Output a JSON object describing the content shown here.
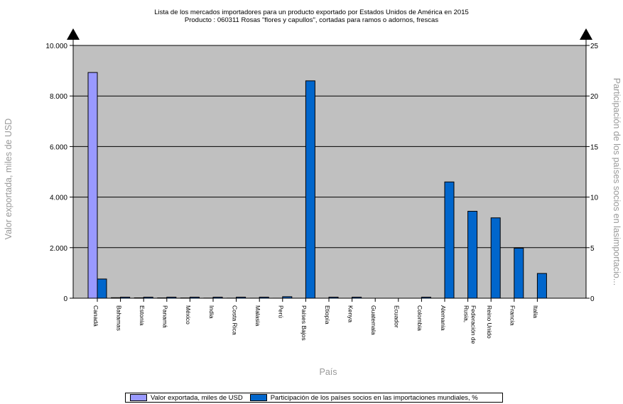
{
  "chart_data": {
    "type": "bar",
    "title": "Lista de los mercados importadores para un producto exportado por Estados Unidos de América en 2015",
    "subtitle": "Producto : 060311 Rosas \"flores y capullos\", cortadas para ramos o adornos, frescas",
    "xlabel": "País",
    "ylabel": "Valor exportada, miles de USD",
    "y2label": "Participación de los países socios en lasimportacio...",
    "ylim": [
      0,
      10000
    ],
    "y2lim": [
      0,
      25
    ],
    "yticks": [
      "0",
      "2.000",
      "4.000",
      "6.000",
      "8.000",
      "10.000"
    ],
    "y2ticks": [
      "0",
      "5",
      "10",
      "15",
      "20",
      "25"
    ],
    "grid": true,
    "legend_position": "bottom",
    "categories": [
      "Canadá",
      "Bahamas",
      "Estonia",
      "Panamá",
      "México",
      "India",
      "Costa Rica",
      "Malasia",
      "Perú",
      "Países Bajos",
      "Etiopía",
      "Kenya",
      "Guatemala",
      "Ecuador",
      "Colombia",
      "Alemania",
      "Rusia, Federación de",
      "Reino Unido",
      "Francia",
      "Italia"
    ],
    "category_lines": [
      [
        "Canadá"
      ],
      [
        "Bahamas"
      ],
      [
        "Estonia"
      ],
      [
        "Panamá"
      ],
      [
        "México"
      ],
      [
        "India"
      ],
      [
        "Costa Rica"
      ],
      [
        "Malasia"
      ],
      [
        "Perú"
      ],
      [
        "Países Bajos"
      ],
      [
        "Etiopía"
      ],
      [
        "Kenya"
      ],
      [
        "Guatemala"
      ],
      [
        "Ecuador"
      ],
      [
        "Colombia"
      ],
      [
        "Alemania"
      ],
      [
        "Rusia,",
        "Federación de"
      ],
      [
        "Reino Unido"
      ],
      [
        "Francia"
      ],
      [
        "Italia"
      ]
    ],
    "series": [
      {
        "name": "Valor exportada, miles de USD",
        "axis": "left",
        "color": "#9999ff",
        "values": [
          8930,
          20,
          15,
          12,
          10,
          5,
          3,
          2,
          1,
          0,
          0,
          0,
          0,
          0,
          0,
          0,
          0,
          0,
          0,
          0
        ]
      },
      {
        "name": "Participación de los países socios en las importaciones mundiales, %",
        "axis": "right",
        "color": "#0066cc",
        "values": [
          1.9,
          0.05,
          0.05,
          0.05,
          0.05,
          0.05,
          0.05,
          0.05,
          0.15,
          21.5,
          0.05,
          0.05,
          0,
          0,
          0.05,
          11.5,
          8.6,
          7.95,
          4.95,
          2.45
        ]
      }
    ],
    "plot_background": "#c0c0c0"
  }
}
